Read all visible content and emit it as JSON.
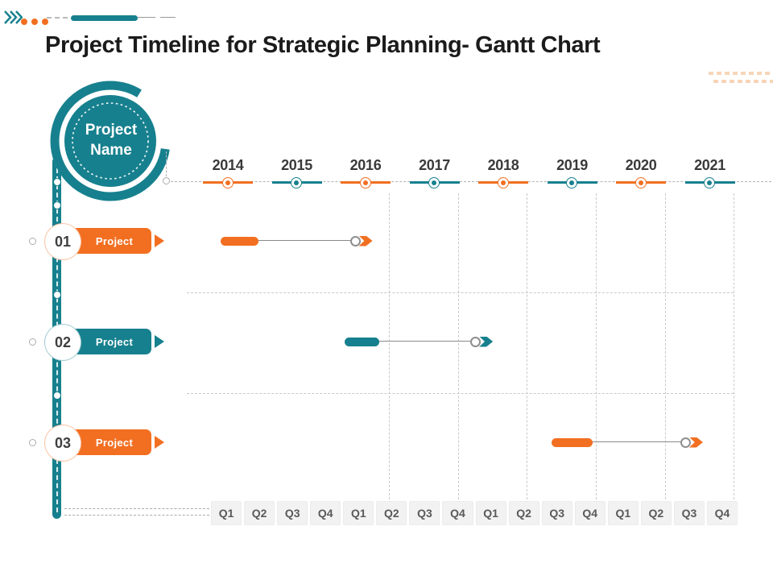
{
  "title": "Project Timeline for Strategic Planning- Gantt Chart",
  "badge": {
    "label": "Project Name"
  },
  "colors": {
    "teal": "#17808E",
    "orange": "#F26F21",
    "peach": "#F6D5B8",
    "grid": "#C9C9C9",
    "connector": "#8A8A8A",
    "year_text": "#3A3A3A",
    "quarter_text": "#595959",
    "quarter_bg": "#F2F2F2",
    "title_text": "#1B1B1B",
    "number_text": "#3F3F3F"
  },
  "chart_data": {
    "type": "gantt",
    "title": "Project Timeline for Strategic Planning- Gantt Chart",
    "x_axis": {
      "unit": "year",
      "ticks": [
        "2014",
        "2015",
        "2016",
        "2017",
        "2018",
        "2019",
        "2020",
        "2021"
      ],
      "tick_accents": [
        "orange",
        "teal",
        "orange",
        "teal",
        "orange",
        "teal",
        "orange",
        "teal"
      ],
      "range": [
        2014,
        2021
      ]
    },
    "quarter_footer": [
      "Q1",
      "Q2",
      "Q3",
      "Q4",
      "Q1",
      "Q2",
      "Q3",
      "Q4",
      "Q1",
      "Q2",
      "Q3",
      "Q4",
      "Q1",
      "Q2",
      "Q3",
      "Q4"
    ],
    "rows": [
      {
        "number": "01",
        "label": "Project",
        "accent": "orange",
        "bar": {
          "solid_start": 2013.9,
          "solid_end": 2014.45,
          "milestone": 2015.85,
          "arrow_tip": 2016.1
        }
      },
      {
        "number": "02",
        "label": "Project",
        "accent": "teal",
        "bar": {
          "solid_start": 2015.7,
          "solid_end": 2016.2,
          "milestone": 2017.6,
          "arrow_tip": 2017.85
        }
      },
      {
        "number": "03",
        "label": "Project",
        "accent": "orange",
        "bar": {
          "solid_start": 2018.7,
          "solid_end": 2019.3,
          "milestone": 2020.65,
          "arrow_tip": 2020.9
        }
      }
    ],
    "legend_position": "none",
    "grid": "dashed"
  }
}
